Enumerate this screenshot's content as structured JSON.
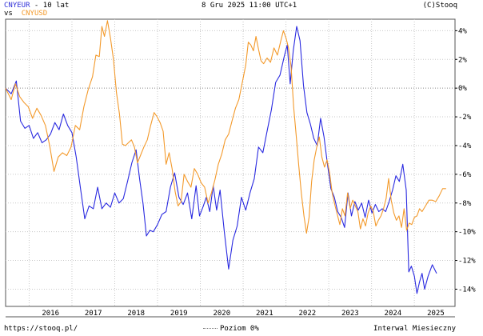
{
  "header": {
    "series1_label": "CNYEUR",
    "title_suffix": " - 10 lat",
    "vs_label": "vs",
    "series2_label": "CNYUSD",
    "date": "8 Gru 2025 11:00 UTC+1",
    "copyright": "(C)Stooq"
  },
  "footer": {
    "url": "https://stooq.pl/",
    "zero_level_label": "Poziom 0%",
    "interval_label": "Interwal Miesieczny"
  },
  "colors": {
    "series1": "#2a2ae0",
    "series2": "#f39a2c",
    "grid": "#c8c8c8"
  },
  "chart_data": {
    "type": "line",
    "x_unit": "year",
    "xlim": [
      2015.45,
      2025.95
    ],
    "ylim": [
      -15.2,
      4.8
    ],
    "grid": true,
    "y_ticks": [
      4,
      2,
      0,
      -2,
      -4,
      -6,
      -8,
      -10,
      -12,
      -14
    ],
    "y_tick_labels": [
      "4%",
      "2%",
      "0%",
      "-2%",
      "-4%",
      "-6%",
      "-8%",
      "-10%",
      "-12%",
      "-14%"
    ],
    "x_tick_labels": [
      "2016",
      "2017",
      "2018",
      "2019",
      "2020",
      "2021",
      "2022",
      "2023",
      "2024",
      "2025"
    ],
    "series": [
      {
        "name": "CNYEUR",
        "points": [
          [
            2015.45,
            0
          ],
          [
            2015.58,
            -0.4
          ],
          [
            2015.7,
            0.5
          ],
          [
            2015.8,
            -2.3
          ],
          [
            2015.9,
            -2.8
          ],
          [
            2016.0,
            -2.6
          ],
          [
            2016.1,
            -3.5
          ],
          [
            2016.2,
            -3.1
          ],
          [
            2016.3,
            -3.8
          ],
          [
            2016.4,
            -3.6
          ],
          [
            2016.5,
            -3.2
          ],
          [
            2016.6,
            -2.4
          ],
          [
            2016.7,
            -2.9
          ],
          [
            2016.8,
            -1.8
          ],
          [
            2016.9,
            -2.6
          ],
          [
            2017.0,
            -3.1
          ],
          [
            2017.1,
            -4.8
          ],
          [
            2017.2,
            -7.0
          ],
          [
            2017.3,
            -9.1
          ],
          [
            2017.4,
            -8.2
          ],
          [
            2017.5,
            -8.4
          ],
          [
            2017.6,
            -6.9
          ],
          [
            2017.7,
            -8.4
          ],
          [
            2017.8,
            -8.0
          ],
          [
            2017.9,
            -8.3
          ],
          [
            2018.0,
            -7.3
          ],
          [
            2018.1,
            -8.0
          ],
          [
            2018.2,
            -7.7
          ],
          [
            2018.3,
            -6.5
          ],
          [
            2018.4,
            -5.2
          ],
          [
            2018.5,
            -4.3
          ],
          [
            2018.58,
            -6.3
          ],
          [
            2018.66,
            -8.0
          ],
          [
            2018.74,
            -10.3
          ],
          [
            2018.82,
            -9.9
          ],
          [
            2018.9,
            -10.0
          ],
          [
            2019.0,
            -9.5
          ],
          [
            2019.1,
            -8.8
          ],
          [
            2019.2,
            -8.6
          ],
          [
            2019.3,
            -6.9
          ],
          [
            2019.4,
            -5.9
          ],
          [
            2019.5,
            -7.6
          ],
          [
            2019.6,
            -8.1
          ],
          [
            2019.7,
            -7.3
          ],
          [
            2019.8,
            -9.1
          ],
          [
            2019.9,
            -6.8
          ],
          [
            2019.98,
            -8.9
          ],
          [
            2020.06,
            -8.3
          ],
          [
            2020.14,
            -7.6
          ],
          [
            2020.22,
            -8.6
          ],
          [
            2020.3,
            -6.8
          ],
          [
            2020.38,
            -8.5
          ],
          [
            2020.46,
            -7.1
          ],
          [
            2020.56,
            -10.0
          ],
          [
            2020.66,
            -12.6
          ],
          [
            2020.76,
            -10.6
          ],
          [
            2020.86,
            -9.6
          ],
          [
            2020.96,
            -7.6
          ],
          [
            2021.06,
            -8.5
          ],
          [
            2021.16,
            -7.3
          ],
          [
            2021.26,
            -6.3
          ],
          [
            2021.36,
            -4.1
          ],
          [
            2021.46,
            -4.5
          ],
          [
            2021.56,
            -3.0
          ],
          [
            2021.66,
            -1.5
          ],
          [
            2021.76,
            0.4
          ],
          [
            2021.86,
            0.9
          ],
          [
            2021.96,
            2.2
          ],
          [
            2022.03,
            3.0
          ],
          [
            2022.1,
            0.3
          ],
          [
            2022.17,
            2.6
          ],
          [
            2022.25,
            4.3
          ],
          [
            2022.33,
            3.3
          ],
          [
            2022.41,
            0.2
          ],
          [
            2022.49,
            -1.7
          ],
          [
            2022.57,
            -2.5
          ],
          [
            2022.65,
            -3.5
          ],
          [
            2022.73,
            -4.0
          ],
          [
            2022.81,
            -2.1
          ],
          [
            2022.89,
            -3.4
          ],
          [
            2022.97,
            -5.3
          ],
          [
            2023.05,
            -7.0
          ],
          [
            2023.13,
            -7.6
          ],
          [
            2023.21,
            -8.6
          ],
          [
            2023.29,
            -9.0
          ],
          [
            2023.37,
            -9.7
          ],
          [
            2023.45,
            -7.3
          ],
          [
            2023.53,
            -8.9
          ],
          [
            2023.61,
            -7.9
          ],
          [
            2023.69,
            -8.5
          ],
          [
            2023.77,
            -8.0
          ],
          [
            2023.85,
            -9.0
          ],
          [
            2023.93,
            -7.8
          ],
          [
            2024.01,
            -8.7
          ],
          [
            2024.09,
            -8.1
          ],
          [
            2024.17,
            -8.6
          ],
          [
            2024.25,
            -8.4
          ],
          [
            2024.33,
            -8.6
          ],
          [
            2024.41,
            -7.9
          ],
          [
            2024.49,
            -7.1
          ],
          [
            2024.57,
            -6.1
          ],
          [
            2024.65,
            -6.5
          ],
          [
            2024.73,
            -5.3
          ],
          [
            2024.81,
            -7.1
          ],
          [
            2024.87,
            -12.8
          ],
          [
            2024.93,
            -12.4
          ],
          [
            2025.0,
            -13.1
          ],
          [
            2025.06,
            -14.3
          ],
          [
            2025.12,
            -13.5
          ],
          [
            2025.18,
            -12.9
          ],
          [
            2025.24,
            -14.0
          ],
          [
            2025.32,
            -13.1
          ],
          [
            2025.42,
            -12.3
          ],
          [
            2025.52,
            -12.9
          ]
        ]
      },
      {
        "name": "CNYUSD",
        "points": [
          [
            2015.45,
            0
          ],
          [
            2015.58,
            -0.8
          ],
          [
            2015.68,
            0.3
          ],
          [
            2015.78,
            -0.6
          ],
          [
            2015.88,
            -1.0
          ],
          [
            2015.98,
            -1.3
          ],
          [
            2016.08,
            -2.1
          ],
          [
            2016.18,
            -1.4
          ],
          [
            2016.28,
            -1.9
          ],
          [
            2016.38,
            -2.6
          ],
          [
            2016.48,
            -4.0
          ],
          [
            2016.58,
            -5.8
          ],
          [
            2016.68,
            -4.8
          ],
          [
            2016.78,
            -4.5
          ],
          [
            2016.88,
            -4.7
          ],
          [
            2016.98,
            -4.1
          ],
          [
            2017.08,
            -2.6
          ],
          [
            2017.18,
            -2.9
          ],
          [
            2017.28,
            -1.3
          ],
          [
            2017.38,
            -0.1
          ],
          [
            2017.48,
            0.8
          ],
          [
            2017.56,
            2.3
          ],
          [
            2017.64,
            2.2
          ],
          [
            2017.7,
            4.3
          ],
          [
            2017.76,
            3.6
          ],
          [
            2017.83,
            4.7
          ],
          [
            2017.9,
            3.5
          ],
          [
            2017.97,
            2.0
          ],
          [
            2018.04,
            -0.3
          ],
          [
            2018.11,
            -1.8
          ],
          [
            2018.18,
            -3.9
          ],
          [
            2018.25,
            -4.0
          ],
          [
            2018.32,
            -3.8
          ],
          [
            2018.39,
            -3.6
          ],
          [
            2018.46,
            -4.1
          ],
          [
            2018.53,
            -5.2
          ],
          [
            2018.6,
            -4.7
          ],
          [
            2018.68,
            -4.1
          ],
          [
            2018.76,
            -3.6
          ],
          [
            2018.84,
            -2.6
          ],
          [
            2018.92,
            -1.7
          ],
          [
            2018.99,
            -2.0
          ],
          [
            2019.06,
            -2.4
          ],
          [
            2019.13,
            -3.0
          ],
          [
            2019.2,
            -5.3
          ],
          [
            2019.27,
            -4.5
          ],
          [
            2019.34,
            -5.6
          ],
          [
            2019.41,
            -7.2
          ],
          [
            2019.48,
            -8.2
          ],
          [
            2019.55,
            -7.9
          ],
          [
            2019.62,
            -6.0
          ],
          [
            2019.7,
            -6.5
          ],
          [
            2019.78,
            -6.9
          ],
          [
            2019.86,
            -5.6
          ],
          [
            2019.94,
            -6.0
          ],
          [
            2020.02,
            -6.6
          ],
          [
            2020.1,
            -6.9
          ],
          [
            2020.18,
            -8.0
          ],
          [
            2020.26,
            -7.3
          ],
          [
            2020.34,
            -6.4
          ],
          [
            2020.42,
            -5.3
          ],
          [
            2020.5,
            -4.6
          ],
          [
            2020.58,
            -3.6
          ],
          [
            2020.66,
            -3.2
          ],
          [
            2020.74,
            -2.3
          ],
          [
            2020.82,
            -1.4
          ],
          [
            2020.9,
            -0.8
          ],
          [
            2020.98,
            0.4
          ],
          [
            2021.06,
            1.6
          ],
          [
            2021.12,
            3.2
          ],
          [
            2021.18,
            3.0
          ],
          [
            2021.24,
            2.6
          ],
          [
            2021.3,
            3.6
          ],
          [
            2021.36,
            2.7
          ],
          [
            2021.42,
            1.9
          ],
          [
            2021.48,
            1.7
          ],
          [
            2021.56,
            2.1
          ],
          [
            2021.64,
            1.8
          ],
          [
            2021.72,
            2.8
          ],
          [
            2021.8,
            2.3
          ],
          [
            2021.88,
            3.3
          ],
          [
            2021.94,
            4.0
          ],
          [
            2022.0,
            3.5
          ],
          [
            2022.06,
            2.8
          ],
          [
            2022.12,
            1.5
          ],
          [
            2022.18,
            -1.3
          ],
          [
            2022.24,
            -3.3
          ],
          [
            2022.3,
            -5.4
          ],
          [
            2022.36,
            -7.3
          ],
          [
            2022.42,
            -8.9
          ],
          [
            2022.48,
            -10.1
          ],
          [
            2022.54,
            -9.0
          ],
          [
            2022.6,
            -6.5
          ],
          [
            2022.66,
            -5.0
          ],
          [
            2022.72,
            -4.1
          ],
          [
            2022.78,
            -3.4
          ],
          [
            2022.84,
            -4.8
          ],
          [
            2022.9,
            -5.5
          ],
          [
            2022.96,
            -5.0
          ],
          [
            2023.02,
            -5.9
          ],
          [
            2023.08,
            -7.3
          ],
          [
            2023.14,
            -8.1
          ],
          [
            2023.2,
            -8.8
          ],
          [
            2023.26,
            -9.5
          ],
          [
            2023.32,
            -8.4
          ],
          [
            2023.38,
            -8.9
          ],
          [
            2023.44,
            -7.3
          ],
          [
            2023.5,
            -8.4
          ],
          [
            2023.56,
            -7.8
          ],
          [
            2023.62,
            -8.2
          ],
          [
            2023.68,
            -8.6
          ],
          [
            2023.74,
            -9.8
          ],
          [
            2023.8,
            -9.1
          ],
          [
            2023.86,
            -9.6
          ],
          [
            2023.92,
            -8.7
          ],
          [
            2023.98,
            -8.2
          ],
          [
            2024.04,
            -8.6
          ],
          [
            2024.1,
            -9.6
          ],
          [
            2024.16,
            -9.2
          ],
          [
            2024.22,
            -8.9
          ],
          [
            2024.28,
            -8.4
          ],
          [
            2024.34,
            -7.7
          ],
          [
            2024.4,
            -6.3
          ],
          [
            2024.46,
            -7.8
          ],
          [
            2024.52,
            -8.7
          ],
          [
            2024.58,
            -9.2
          ],
          [
            2024.64,
            -8.9
          ],
          [
            2024.7,
            -9.7
          ],
          [
            2024.76,
            -8.4
          ],
          [
            2024.82,
            -9.9
          ],
          [
            2024.88,
            -9.4
          ],
          [
            2024.94,
            -9.5
          ],
          [
            2025.0,
            -9.0
          ],
          [
            2025.06,
            -8.9
          ],
          [
            2025.12,
            -8.4
          ],
          [
            2025.18,
            -8.6
          ],
          [
            2025.26,
            -8.2
          ],
          [
            2025.34,
            -7.8
          ],
          [
            2025.42,
            -7.8
          ],
          [
            2025.5,
            -7.9
          ],
          [
            2025.58,
            -7.5
          ],
          [
            2025.66,
            -7.0
          ],
          [
            2025.74,
            -7.0
          ]
        ]
      }
    ]
  }
}
